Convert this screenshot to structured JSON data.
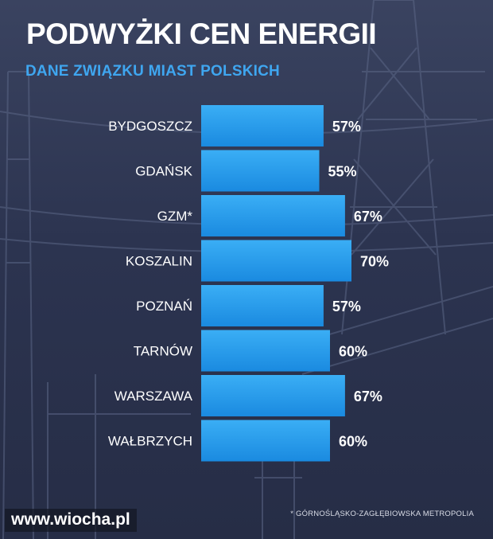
{
  "title": "PODWYŻKI CEN ENERGII",
  "subtitle": "DANE ZWIĄZKU MIAST POLSKICH",
  "footnote": "* GÓRNOŚLĄSKO-ZAGŁĘBIOWSKA METROPOLIA",
  "watermark": "www.wiocha.pl",
  "colors": {
    "bar_top": "#3aaef5",
    "bar_bottom": "#1a8ae0",
    "subtitle": "#3fa6f0",
    "background": "#2c3550"
  },
  "chart_data": {
    "type": "bar",
    "orientation": "horizontal",
    "title": "PODWYŻKI CEN ENERGII",
    "subtitle": "DANE ZWIĄZKU MIAST POLSKICH",
    "categories": [
      "BYDGOSZCZ",
      "GDAŃSK",
      "GZM*",
      "KOSZALIN",
      "POZNAŃ",
      "TARNÓW",
      "WARSZAWA",
      "WAŁBRZYCH"
    ],
    "values": [
      57,
      55,
      67,
      70,
      57,
      60,
      67,
      60
    ],
    "value_labels": [
      "57%",
      "55%",
      "67%",
      "70%",
      "57%",
      "60%",
      "67%",
      "60%"
    ],
    "unit": "%",
    "grid": false,
    "legend": "none"
  }
}
